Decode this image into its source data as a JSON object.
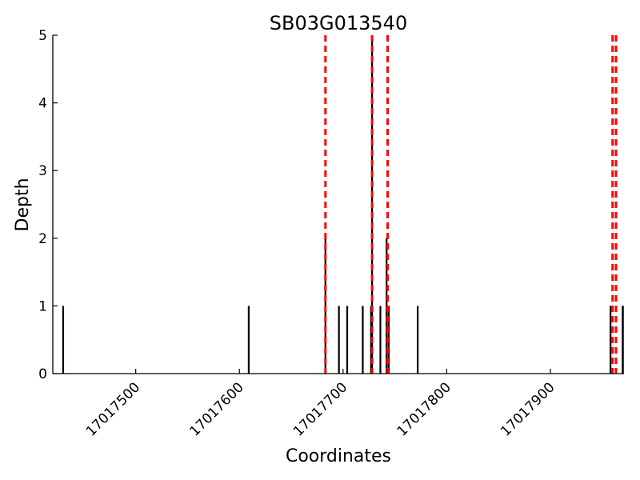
{
  "chart_data": {
    "type": "bar",
    "title": "SB03G013540",
    "xlabel": "Coordinates",
    "ylabel": "Depth",
    "xlim": [
      17017420,
      17017971
    ],
    "ylim": [
      0,
      5
    ],
    "x_ticks": [
      17017500,
      17017600,
      17017700,
      17017800,
      17017900
    ],
    "x_tick_labels": [
      "17017500",
      "17017600",
      "17017700",
      "17017800",
      "17017900"
    ],
    "y_ticks": [
      0,
      1,
      2,
      3,
      4,
      5
    ],
    "y_tick_labels": [
      "0",
      "1",
      "2",
      "3",
      "4",
      "5"
    ],
    "grid": false,
    "bar_color": "#000000",
    "marker_color": "#ff0000",
    "points": [
      {
        "x": 17017430,
        "y": 1
      },
      {
        "x": 17017609,
        "y": 1
      },
      {
        "x": 17017683,
        "y": 2
      },
      {
        "x": 17017696,
        "y": 1
      },
      {
        "x": 17017704,
        "y": 1
      },
      {
        "x": 17017719,
        "y": 1
      },
      {
        "x": 17017727,
        "y": 1
      },
      {
        "x": 17017728,
        "y": 5
      },
      {
        "x": 17017736,
        "y": 1
      },
      {
        "x": 17017742,
        "y": 2
      },
      {
        "x": 17017744,
        "y": 1
      },
      {
        "x": 17017772,
        "y": 1
      },
      {
        "x": 17017958,
        "y": 1
      },
      {
        "x": 17017974,
        "y": 1
      },
      {
        "x": 17017976,
        "y": 1
      },
      {
        "x": 17017978,
        "y": 1
      }
    ],
    "marker_lines": [
      17017683,
      17017728,
      17017743,
      17017960,
      17017979
    ]
  }
}
